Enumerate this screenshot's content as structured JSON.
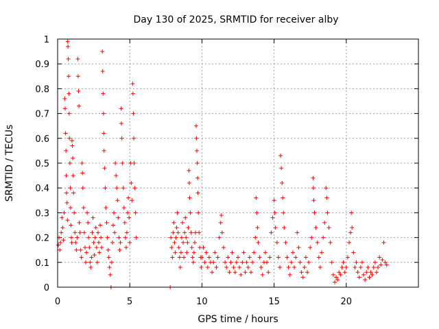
{
  "chart_data": {
    "type": "scatter",
    "title": "Day 130 of 2025, SRMTID for receiver alby",
    "xlabel": "GPS time / hours",
    "ylabel": "SRMTID / TECUs",
    "xlim": [
      0,
      25
    ],
    "ylim": [
      0,
      1
    ],
    "xticks": [
      "0",
      "5",
      "10",
      "15",
      "20"
    ],
    "yticks": [
      "0",
      "0.1",
      "0.2",
      "0.3",
      "0.4",
      "0.5",
      "0.6",
      "0.7",
      "0.8",
      "0.9",
      "1"
    ],
    "grid": true,
    "marker": "+",
    "color": "#ff0000",
    "series": [
      {
        "name": "SRMTID",
        "points": [
          [
            0.05,
            0.17
          ],
          [
            0.1,
            0.2
          ],
          [
            0.15,
            0.15
          ],
          [
            0.2,
            0.18
          ],
          [
            0.25,
            0.22
          ],
          [
            0.3,
            0.28
          ],
          [
            0.35,
            0.24
          ],
          [
            0.4,
            0.19
          ],
          [
            0.45,
            0.3
          ],
          [
            0.5,
            0.76
          ],
          [
            0.52,
            0.72
          ],
          [
            0.55,
            0.62
          ],
          [
            0.58,
            0.55
          ],
          [
            0.6,
            0.45
          ],
          [
            0.62,
            0.38
          ],
          [
            0.65,
            0.34
          ],
          [
            0.68,
            0.27
          ],
          [
            0.7,
            0.99
          ],
          [
            0.72,
            0.97
          ],
          [
            0.74,
            0.92
          ],
          [
            0.76,
            0.85
          ],
          [
            0.78,
            0.78
          ],
          [
            0.8,
            0.7
          ],
          [
            0.82,
            0.6
          ],
          [
            0.85,
            0.5
          ],
          [
            0.88,
            0.4
          ],
          [
            0.9,
            0.32
          ],
          [
            0.92,
            0.25
          ],
          [
            0.95,
            0.2
          ],
          [
            0.98,
            0.18
          ],
          [
            1.0,
            0.59
          ],
          [
            1.02,
            0.57
          ],
          [
            1.05,
            0.52
          ],
          [
            1.08,
            0.45
          ],
          [
            1.1,
            0.38
          ],
          [
            1.15,
            0.3
          ],
          [
            1.2,
            0.22
          ],
          [
            1.25,
            0.18
          ],
          [
            1.3,
            0.15
          ],
          [
            1.35,
            0.2
          ],
          [
            1.4,
            0.92
          ],
          [
            1.42,
            0.85
          ],
          [
            1.45,
            0.79
          ],
          [
            1.48,
            0.73
          ],
          [
            1.5,
            0.26
          ],
          [
            1.55,
            0.22
          ],
          [
            1.6,
            0.15
          ],
          [
            1.65,
            0.12
          ],
          [
            1.7,
            0.5
          ],
          [
            1.72,
            0.46
          ],
          [
            1.75,
            0.4
          ],
          [
            1.8,
            0.32
          ],
          [
            1.85,
            0.22
          ],
          [
            1.9,
            0.16
          ],
          [
            1.95,
            0.1
          ],
          [
            2.0,
            0.14
          ],
          [
            2.05,
            0.3
          ],
          [
            2.1,
            0.26
          ],
          [
            2.15,
            0.2
          ],
          [
            2.2,
            0.16
          ],
          [
            2.25,
            0.1
          ],
          [
            2.3,
            0.08
          ],
          [
            2.35,
            0.12
          ],
          [
            2.4,
            0.22
          ],
          [
            2.45,
            0.28
          ],
          [
            2.5,
            0.18
          ],
          [
            2.55,
            0.13
          ],
          [
            2.6,
            0.2
          ],
          [
            2.65,
            0.24
          ],
          [
            2.7,
            0.16
          ],
          [
            2.75,
            0.1
          ],
          [
            2.8,
            0.22
          ],
          [
            2.85,
            0.18
          ],
          [
            2.9,
            0.14
          ],
          [
            2.95,
            0.25
          ],
          [
            3.0,
            0.2
          ],
          [
            3.05,
            0.16
          ],
          [
            3.1,
            0.95
          ],
          [
            3.12,
            0.87
          ],
          [
            3.15,
            0.78
          ],
          [
            3.18,
            0.7
          ],
          [
            3.2,
            0.62
          ],
          [
            3.22,
            0.55
          ],
          [
            3.25,
            0.48
          ],
          [
            3.3,
            0.4
          ],
          [
            3.35,
            0.32
          ],
          [
            3.4,
            0.26
          ],
          [
            3.45,
            0.2
          ],
          [
            3.5,
            0.15
          ],
          [
            3.55,
            0.12
          ],
          [
            3.6,
            0.08
          ],
          [
            3.65,
            0.05
          ],
          [
            3.7,
            0.0
          ],
          [
            3.75,
            0.1
          ],
          [
            3.8,
            0.18
          ],
          [
            3.85,
            0.25
          ],
          [
            3.9,
            0.3
          ],
          [
            3.95,
            0.22
          ],
          [
            4.0,
            0.5
          ],
          [
            4.05,
            0.45
          ],
          [
            4.1,
            0.4
          ],
          [
            4.15,
            0.35
          ],
          [
            4.2,
            0.28
          ],
          [
            4.25,
            0.2
          ],
          [
            4.3,
            0.15
          ],
          [
            4.35,
            0.18
          ],
          [
            4.4,
            0.72
          ],
          [
            4.42,
            0.66
          ],
          [
            4.45,
            0.6
          ],
          [
            4.5,
            0.5
          ],
          [
            4.55,
            0.4
          ],
          [
            4.6,
            0.32
          ],
          [
            4.65,
            0.26
          ],
          [
            4.7,
            0.2
          ],
          [
            4.75,
            0.16
          ],
          [
            4.8,
            0.22
          ],
          [
            4.85,
            0.3
          ],
          [
            4.9,
            0.36
          ],
          [
            4.95,
            0.28
          ],
          [
            5.0,
            0.18
          ],
          [
            5.05,
            0.5
          ],
          [
            5.1,
            0.42
          ],
          [
            5.15,
            0.35
          ],
          [
            5.2,
            0.82
          ],
          [
            5.22,
            0.78
          ],
          [
            5.25,
            0.7
          ],
          [
            5.28,
            0.6
          ],
          [
            5.3,
            0.5
          ],
          [
            5.35,
            0.4
          ],
          [
            5.4,
            0.3
          ],
          [
            5.45,
            0.2
          ],
          [
            7.8,
            0.0
          ],
          [
            7.85,
            0.2
          ],
          [
            7.9,
            0.16
          ],
          [
            7.95,
            0.12
          ],
          [
            8.0,
            0.22
          ],
          [
            8.05,
            0.26
          ],
          [
            8.1,
            0.18
          ],
          [
            8.15,
            0.14
          ],
          [
            8.2,
            0.2
          ],
          [
            8.25,
            0.24
          ],
          [
            8.3,
            0.3
          ],
          [
            8.35,
            0.22
          ],
          [
            8.4,
            0.16
          ],
          [
            8.45,
            0.12
          ],
          [
            8.5,
            0.08
          ],
          [
            8.55,
            0.14
          ],
          [
            8.6,
            0.2
          ],
          [
            8.65,
            0.26
          ],
          [
            8.7,
            0.18
          ],
          [
            8.75,
            0.12
          ],
          [
            8.8,
            0.22
          ],
          [
            8.85,
            0.28
          ],
          [
            8.9,
            0.2
          ],
          [
            8.95,
            0.14
          ],
          [
            9.0,
            0.18
          ],
          [
            9.05,
            0.24
          ],
          [
            9.1,
            0.47
          ],
          [
            9.12,
            0.42
          ],
          [
            9.15,
            0.36
          ],
          [
            9.2,
            0.3
          ],
          [
            9.25,
            0.22
          ],
          [
            9.3,
            0.16
          ],
          [
            9.35,
            0.12
          ],
          [
            9.4,
            0.1
          ],
          [
            9.45,
            0.14
          ],
          [
            9.5,
            0.18
          ],
          [
            9.55,
            0.22
          ],
          [
            9.6,
            0.65
          ],
          [
            9.62,
            0.6
          ],
          [
            9.65,
            0.55
          ],
          [
            9.68,
            0.5
          ],
          [
            9.7,
            0.44
          ],
          [
            9.72,
            0.38
          ],
          [
            9.75,
            0.3
          ],
          [
            9.8,
            0.22
          ],
          [
            9.85,
            0.16
          ],
          [
            9.9,
            0.12
          ],
          [
            9.95,
            0.08
          ],
          [
            10.0,
            0.12
          ],
          [
            10.1,
            0.16
          ],
          [
            10.2,
            0.1
          ],
          [
            10.3,
            0.14
          ],
          [
            10.4,
            0.08
          ],
          [
            10.5,
            0.12
          ],
          [
            10.6,
            0.1
          ],
          [
            10.7,
            0.06
          ],
          [
            10.8,
            0.1
          ],
          [
            10.9,
            0.14
          ],
          [
            11.0,
            0.08
          ],
          [
            11.1,
            0.12
          ],
          [
            11.2,
            0.2
          ],
          [
            11.3,
            0.26
          ],
          [
            11.35,
            0.29
          ],
          [
            11.4,
            0.22
          ],
          [
            11.5,
            0.16
          ],
          [
            11.6,
            0.1
          ],
          [
            11.7,
            0.08
          ],
          [
            11.8,
            0.12
          ],
          [
            11.9,
            0.06
          ],
          [
            12.0,
            0.1
          ],
          [
            12.1,
            0.14
          ],
          [
            12.2,
            0.08
          ],
          [
            12.3,
            0.06
          ],
          [
            12.4,
            0.1
          ],
          [
            12.5,
            0.12
          ],
          [
            12.6,
            0.08
          ],
          [
            12.7,
            0.05
          ],
          [
            12.8,
            0.1
          ],
          [
            12.9,
            0.14
          ],
          [
            13.0,
            0.06
          ],
          [
            13.1,
            0.1
          ],
          [
            13.2,
            0.08
          ],
          [
            13.3,
            0.12
          ],
          [
            13.4,
            0.06
          ],
          [
            13.5,
            0.1
          ],
          [
            13.6,
            0.14
          ],
          [
            13.7,
            0.2
          ],
          [
            13.75,
            0.36
          ],
          [
            13.8,
            0.3
          ],
          [
            13.85,
            0.24
          ],
          [
            13.9,
            0.18
          ],
          [
            14.0,
            0.12
          ],
          [
            14.1,
            0.08
          ],
          [
            14.2,
            0.05
          ],
          [
            14.3,
            0.1
          ],
          [
            14.4,
            0.14
          ],
          [
            14.5,
            0.1
          ],
          [
            14.6,
            0.06
          ],
          [
            14.7,
            0.12
          ],
          [
            14.8,
            0.22
          ],
          [
            14.9,
            0.28
          ],
          [
            15.0,
            0.35
          ],
          [
            15.05,
            0.3
          ],
          [
            15.1,
            0.24
          ],
          [
            15.2,
            0.18
          ],
          [
            15.3,
            0.12
          ],
          [
            15.4,
            0.08
          ],
          [
            15.45,
            0.53
          ],
          [
            15.5,
            0.48
          ],
          [
            15.55,
            0.42
          ],
          [
            15.6,
            0.36
          ],
          [
            15.65,
            0.3
          ],
          [
            15.7,
            0.24
          ],
          [
            15.8,
            0.18
          ],
          [
            15.9,
            0.12
          ],
          [
            16.0,
            0.08
          ],
          [
            16.1,
            0.05
          ],
          [
            16.2,
            0.1
          ],
          [
            16.3,
            0.14
          ],
          [
            16.4,
            0.08
          ],
          [
            16.5,
            0.12
          ],
          [
            16.6,
            0.22
          ],
          [
            16.7,
            0.16
          ],
          [
            16.8,
            0.1
          ],
          [
            16.9,
            0.06
          ],
          [
            17.0,
            0.04
          ],
          [
            17.1,
            0.08
          ],
          [
            17.2,
            0.12
          ],
          [
            17.3,
            0.06
          ],
          [
            17.4,
            0.1
          ],
          [
            17.5,
            0.16
          ],
          [
            17.6,
            0.2
          ],
          [
            17.7,
            0.44
          ],
          [
            17.72,
            0.4
          ],
          [
            17.75,
            0.35
          ],
          [
            17.8,
            0.3
          ],
          [
            17.9,
            0.24
          ],
          [
            18.0,
            0.18
          ],
          [
            18.1,
            0.12
          ],
          [
            18.2,
            0.08
          ],
          [
            18.3,
            0.14
          ],
          [
            18.4,
            0.2
          ],
          [
            18.5,
            0.26
          ],
          [
            18.6,
            0.4
          ],
          [
            18.65,
            0.36
          ],
          [
            18.7,
            0.3
          ],
          [
            18.8,
            0.24
          ],
          [
            18.9,
            0.18
          ],
          [
            19.0,
            0.1
          ],
          [
            19.1,
            0.05
          ],
          [
            19.2,
            0.02
          ],
          [
            19.3,
            0.04
          ],
          [
            19.4,
            0.03
          ],
          [
            19.5,
            0.06
          ],
          [
            19.6,
            0.05
          ],
          [
            19.7,
            0.08
          ],
          [
            19.8,
            0.1
          ],
          [
            19.9,
            0.06
          ],
          [
            20.0,
            0.08
          ],
          [
            20.1,
            0.12
          ],
          [
            20.2,
            0.18
          ],
          [
            20.3,
            0.22
          ],
          [
            20.35,
            0.3
          ],
          [
            20.4,
            0.24
          ],
          [
            20.5,
            0.14
          ],
          [
            20.6,
            0.08
          ],
          [
            20.7,
            0.1
          ],
          [
            20.8,
            0.06
          ],
          [
            20.9,
            0.04
          ],
          [
            21.0,
            0.08
          ],
          [
            21.1,
            0.1
          ],
          [
            21.2,
            0.05
          ],
          [
            21.3,
            0.03
          ],
          [
            21.4,
            0.06
          ],
          [
            21.5,
            0.08
          ],
          [
            21.6,
            0.04
          ],
          [
            21.7,
            0.06
          ],
          [
            21.8,
            0.05
          ],
          [
            21.9,
            0.08
          ],
          [
            22.0,
            0.1
          ],
          [
            22.1,
            0.06
          ],
          [
            22.2,
            0.08
          ],
          [
            22.3,
            0.12
          ],
          [
            22.4,
            0.09
          ],
          [
            22.5,
            0.11
          ],
          [
            22.6,
            0.18
          ],
          [
            22.7,
            0.1
          ],
          [
            22.8,
            0.09
          ]
        ]
      }
    ]
  }
}
